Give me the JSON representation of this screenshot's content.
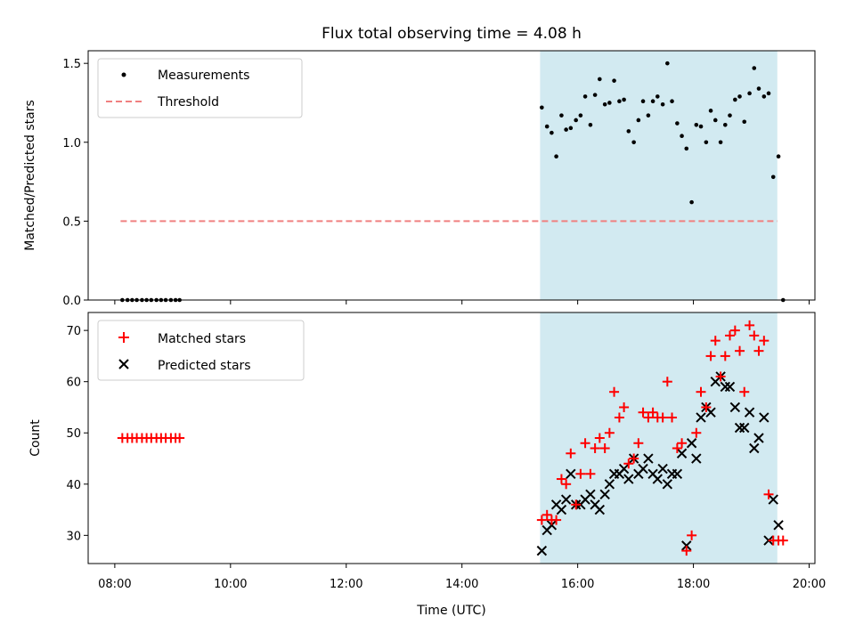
{
  "chart_data": {
    "type": "scatter",
    "title": "Flux total observing time = 4.08 h",
    "xlabel": "Time (UTC)",
    "x_ticks": [
      "08:00",
      "10:00",
      "12:00",
      "14:00",
      "16:00",
      "18:00",
      "20:00"
    ],
    "xlim_hours": [
      7.54,
      20.1
    ],
    "shaded_region_hours": [
      15.35,
      19.45
    ],
    "shade_color": "#add8e6",
    "top_panel": {
      "ylabel": "Matched/Predicted stars",
      "ylim": [
        0,
        1.58
      ],
      "y_ticks": [
        "0.0",
        "0.5",
        "1.0",
        "1.5"
      ],
      "y_tick_values": [
        0,
        0.5,
        1.0,
        1.5
      ],
      "threshold": {
        "name": "Threshold",
        "value": 0.5,
        "x_range_hours": [
          8.1,
          19.45
        ],
        "color": "#f08080"
      },
      "measurements_name": "Measurements",
      "measurements_color": "#000000",
      "measurements": [
        [
          8.13,
          0
        ],
        [
          8.22,
          0
        ],
        [
          8.3,
          0
        ],
        [
          8.38,
          0
        ],
        [
          8.47,
          0
        ],
        [
          8.55,
          0
        ],
        [
          8.63,
          0
        ],
        [
          8.72,
          0
        ],
        [
          8.8,
          0
        ],
        [
          8.88,
          0
        ],
        [
          8.97,
          0
        ],
        [
          9.05,
          0
        ],
        [
          9.12,
          0
        ],
        [
          15.38,
          1.22
        ],
        [
          15.47,
          1.1
        ],
        [
          15.55,
          1.06
        ],
        [
          15.63,
          0.91
        ],
        [
          15.72,
          1.17
        ],
        [
          15.8,
          1.08
        ],
        [
          15.88,
          1.09
        ],
        [
          15.97,
          1.14
        ],
        [
          16.05,
          1.17
        ],
        [
          16.13,
          1.29
        ],
        [
          16.22,
          1.11
        ],
        [
          16.3,
          1.3
        ],
        [
          16.38,
          1.4
        ],
        [
          16.47,
          1.24
        ],
        [
          16.55,
          1.25
        ],
        [
          16.63,
          1.39
        ],
        [
          16.72,
          1.26
        ],
        [
          16.8,
          1.27
        ],
        [
          16.88,
          1.07
        ],
        [
          16.97,
          1.0
        ],
        [
          17.05,
          1.14
        ],
        [
          17.13,
          1.26
        ],
        [
          17.22,
          1.17
        ],
        [
          17.3,
          1.26
        ],
        [
          17.38,
          1.29
        ],
        [
          17.47,
          1.24
        ],
        [
          17.55,
          1.5
        ],
        [
          17.63,
          1.26
        ],
        [
          17.72,
          1.12
        ],
        [
          17.8,
          1.04
        ],
        [
          17.88,
          0.96
        ],
        [
          17.97,
          0.62
        ],
        [
          18.05,
          1.11
        ],
        [
          18.13,
          1.1
        ],
        [
          18.22,
          1.0
        ],
        [
          18.3,
          1.2
        ],
        [
          18.38,
          1.14
        ],
        [
          18.47,
          1.0
        ],
        [
          18.55,
          1.11
        ],
        [
          18.63,
          1.17
        ],
        [
          18.72,
          1.27
        ],
        [
          18.8,
          1.29
        ],
        [
          18.88,
          1.13
        ],
        [
          18.97,
          1.31
        ],
        [
          19.05,
          1.47
        ],
        [
          19.13,
          1.34
        ],
        [
          19.22,
          1.29
        ],
        [
          19.3,
          1.31
        ],
        [
          19.38,
          0.78
        ],
        [
          19.47,
          0.91
        ],
        [
          19.55,
          0
        ]
      ]
    },
    "bottom_panel": {
      "ylabel": "Count",
      "ylim": [
        24.5,
        73.5
      ],
      "y_ticks": [
        "30",
        "40",
        "50",
        "60",
        "70"
      ],
      "y_tick_values": [
        30,
        40,
        50,
        60,
        70
      ],
      "matched_name": "Matched stars",
      "matched_color": "#ff0000",
      "predicted_name": "Predicted stars",
      "predicted_color": "#000000",
      "matched": [
        [
          8.13,
          49
        ],
        [
          8.22,
          49
        ],
        [
          8.3,
          49
        ],
        [
          8.38,
          49
        ],
        [
          8.47,
          49
        ],
        [
          8.55,
          49
        ],
        [
          8.63,
          49
        ],
        [
          8.72,
          49
        ],
        [
          8.8,
          49
        ],
        [
          8.88,
          49
        ],
        [
          8.97,
          49
        ],
        [
          9.05,
          49
        ],
        [
          9.12,
          49
        ],
        [
          15.38,
          33
        ],
        [
          15.47,
          34
        ],
        [
          15.55,
          33
        ],
        [
          15.63,
          33
        ],
        [
          15.72,
          41
        ],
        [
          15.8,
          40
        ],
        [
          15.88,
          46
        ],
        [
          15.97,
          36
        ],
        [
          16.05,
          42
        ],
        [
          16.13,
          48
        ],
        [
          16.22,
          42
        ],
        [
          16.3,
          47
        ],
        [
          16.38,
          49
        ],
        [
          16.47,
          47
        ],
        [
          16.55,
          50
        ],
        [
          16.63,
          58
        ],
        [
          16.72,
          53
        ],
        [
          16.8,
          55
        ],
        [
          16.88,
          44
        ],
        [
          16.97,
          45
        ],
        [
          17.05,
          48
        ],
        [
          17.13,
          54
        ],
        [
          17.22,
          53
        ],
        [
          17.3,
          54
        ],
        [
          17.38,
          53
        ],
        [
          17.47,
          53
        ],
        [
          17.55,
          60
        ],
        [
          17.63,
          53
        ],
        [
          17.72,
          47
        ],
        [
          17.8,
          48
        ],
        [
          17.88,
          27
        ],
        [
          17.97,
          30
        ],
        [
          18.05,
          50
        ],
        [
          18.13,
          58
        ],
        [
          18.22,
          55
        ],
        [
          18.3,
          65
        ],
        [
          18.38,
          68
        ],
        [
          18.47,
          61
        ],
        [
          18.55,
          65
        ],
        [
          18.63,
          69
        ],
        [
          18.72,
          70
        ],
        [
          18.8,
          66
        ],
        [
          18.88,
          58
        ],
        [
          18.97,
          71
        ],
        [
          19.05,
          69
        ],
        [
          19.13,
          66
        ],
        [
          19.22,
          68
        ],
        [
          19.3,
          38
        ],
        [
          19.38,
          29
        ],
        [
          19.47,
          29
        ],
        [
          19.55,
          29
        ]
      ],
      "predicted": [
        [
          15.38,
          27
        ],
        [
          15.47,
          31
        ],
        [
          15.55,
          32
        ],
        [
          15.63,
          36
        ],
        [
          15.72,
          35
        ],
        [
          15.8,
          37
        ],
        [
          15.88,
          42
        ],
        [
          15.97,
          36
        ],
        [
          16.05,
          36
        ],
        [
          16.13,
          37
        ],
        [
          16.22,
          38
        ],
        [
          16.3,
          36
        ],
        [
          16.38,
          35
        ],
        [
          16.47,
          38
        ],
        [
          16.55,
          40
        ],
        [
          16.63,
          42
        ],
        [
          16.72,
          42
        ],
        [
          16.8,
          43
        ],
        [
          16.88,
          41
        ],
        [
          16.97,
          45
        ],
        [
          17.05,
          42
        ],
        [
          17.13,
          43
        ],
        [
          17.22,
          45
        ],
        [
          17.3,
          42
        ],
        [
          17.38,
          41
        ],
        [
          17.47,
          43
        ],
        [
          17.55,
          40
        ],
        [
          17.63,
          42
        ],
        [
          17.72,
          42
        ],
        [
          17.8,
          46
        ],
        [
          17.88,
          28
        ],
        [
          17.97,
          48
        ],
        [
          18.05,
          45
        ],
        [
          18.13,
          53
        ],
        [
          18.22,
          55
        ],
        [
          18.3,
          54
        ],
        [
          18.38,
          60
        ],
        [
          18.47,
          61
        ],
        [
          18.55,
          59
        ],
        [
          18.63,
          59
        ],
        [
          18.72,
          55
        ],
        [
          18.8,
          51
        ],
        [
          18.88,
          51
        ],
        [
          18.97,
          54
        ],
        [
          19.05,
          47
        ],
        [
          19.13,
          49
        ],
        [
          19.22,
          53
        ],
        [
          19.3,
          29
        ],
        [
          19.38,
          37
        ],
        [
          19.47,
          32
        ]
      ]
    }
  }
}
